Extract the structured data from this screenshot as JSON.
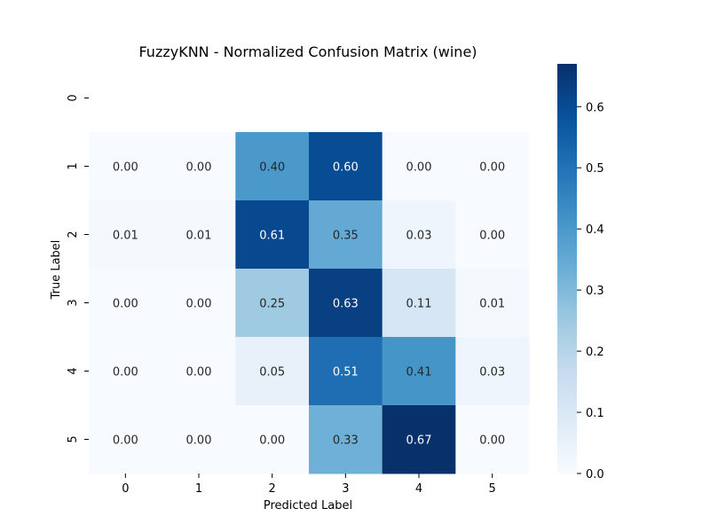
{
  "chart_data": {
    "type": "heatmap",
    "title": "FuzzyKNN - Normalized Confusion Matrix (wine)",
    "xlabel": "Predicted Label",
    "ylabel": "True Label",
    "x_categories": [
      "0",
      "1",
      "2",
      "3",
      "4",
      "5"
    ],
    "y_categories": [
      "0",
      "1",
      "2",
      "3",
      "4",
      "5"
    ],
    "values": [
      [
        null,
        null,
        null,
        null,
        null,
        null
      ],
      [
        0.0,
        0.0,
        0.4,
        0.6,
        0.0,
        0.0
      ],
      [
        0.01,
        0.01,
        0.61,
        0.35,
        0.03,
        0.0
      ],
      [
        0.0,
        0.0,
        0.25,
        0.63,
        0.11,
        0.01
      ],
      [
        0.0,
        0.0,
        0.05,
        0.51,
        0.41,
        0.03
      ],
      [
        0.0,
        0.0,
        0.0,
        0.33,
        0.67,
        0.0
      ]
    ],
    "cell_labels": [
      [
        "",
        "",
        "",
        "",
        "",
        ""
      ],
      [
        "0.00",
        "0.00",
        "0.40",
        "0.60",
        "0.00",
        "0.00"
      ],
      [
        "0.01",
        "0.01",
        "0.61",
        "0.35",
        "0.03",
        "0.00"
      ],
      [
        "0.00",
        "0.00",
        "0.25",
        "0.63",
        "0.11",
        "0.01"
      ],
      [
        "0.00",
        "0.00",
        "0.05",
        "0.51",
        "0.41",
        "0.03"
      ],
      [
        "0.00",
        "0.00",
        "0.00",
        "0.33",
        "0.67",
        "0.00"
      ]
    ],
    "colormap": "Blues",
    "color_range": [
      0,
      0.67
    ],
    "colorbar_ticks": [
      "0.0",
      "0.1",
      "0.2",
      "0.3",
      "0.4",
      "0.5",
      "0.6"
    ],
    "colorbar_tick_values": [
      0.0,
      0.1,
      0.2,
      0.3,
      0.4,
      0.5,
      0.6
    ],
    "colors": {
      "low": "#f7fbff",
      "high": "#08306b"
    }
  }
}
